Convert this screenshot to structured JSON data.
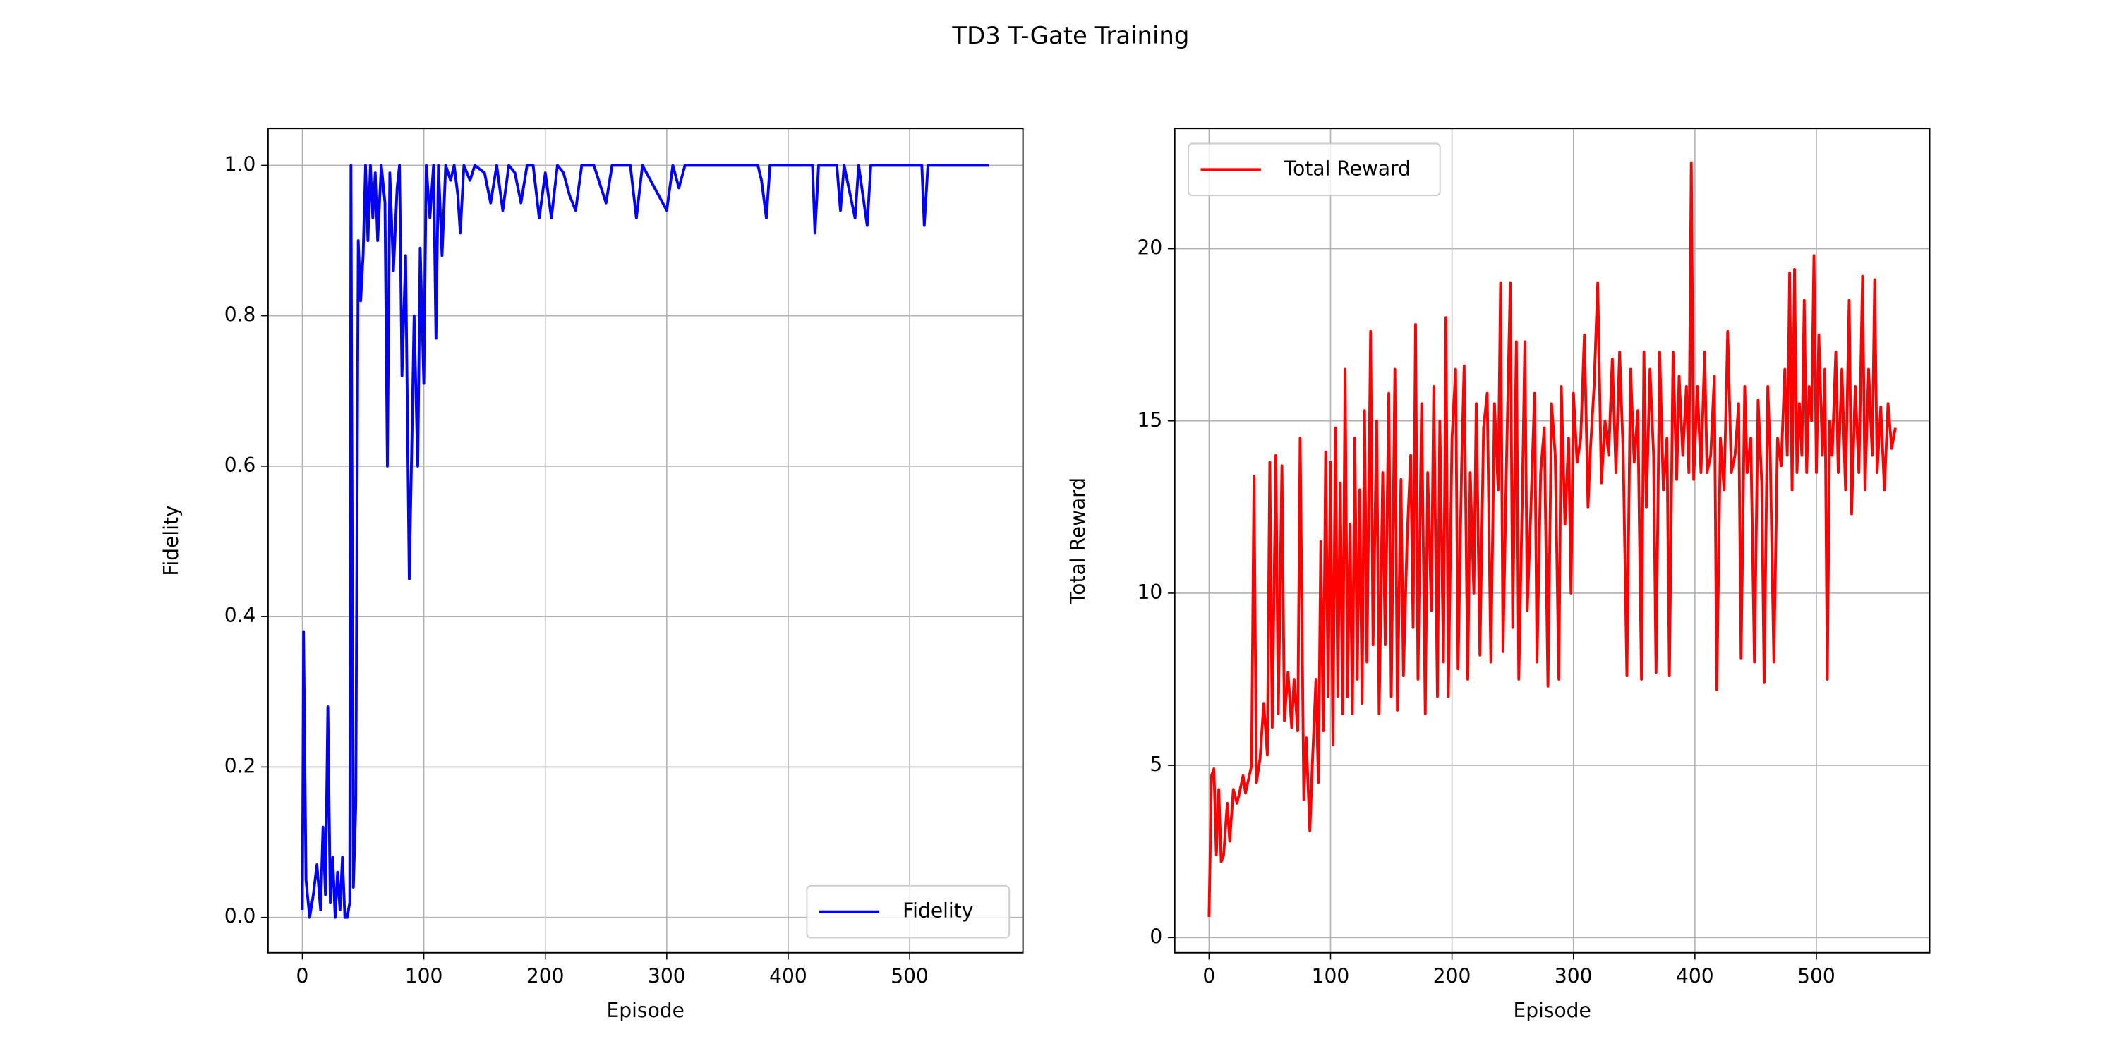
{
  "chart_data": [
    {
      "type": "line",
      "suptitle": "TD3 T-Gate Training",
      "xlabel": "Episode",
      "ylabel": "Fidelity",
      "grid": true,
      "legend": "lower right",
      "xlim": [
        -28.25,
        593.25
      ],
      "xticks": [
        0,
        100,
        200,
        300,
        400,
        500
      ],
      "ylim": [
        -0.047,
        1.049
      ],
      "yticks": [
        {
          "value": 0,
          "label": "0.0"
        },
        0.2,
        0.4,
        0.6,
        0.8,
        {
          "value": 1,
          "label": "1.0"
        }
      ],
      "x": [
        0,
        1,
        3,
        6,
        9,
        12,
        15,
        17,
        19,
        21,
        23,
        25,
        27,
        29,
        31,
        33,
        35,
        37,
        39,
        40,
        42,
        44,
        46,
        48,
        50,
        52,
        54,
        56,
        58,
        60,
        62,
        65,
        68,
        70,
        72,
        75,
        78,
        80,
        82,
        85,
        88,
        90,
        92,
        95,
        97,
        100,
        102,
        105,
        108,
        110,
        112,
        115,
        118,
        122,
        125,
        128,
        130,
        133,
        138,
        142,
        150,
        155,
        160,
        165,
        170,
        175,
        180,
        185,
        190,
        195,
        200,
        205,
        210,
        215,
        220,
        225,
        230,
        240,
        250,
        255,
        270,
        275,
        280,
        300,
        305,
        310,
        315,
        375,
        378,
        382,
        385,
        420,
        422,
        425,
        440,
        443,
        446,
        455,
        458,
        465,
        468,
        510,
        512,
        515,
        565
      ],
      "series": [
        {
          "name": "Fidelity",
          "color": "#0000ff",
          "values": [
            0.01,
            0.38,
            0.05,
            0.0,
            0.03,
            0.07,
            0.01,
            0.12,
            0.03,
            0.28,
            0.02,
            0.08,
            0.0,
            0.06,
            0.01,
            0.08,
            0.0,
            0.0,
            0.02,
            1.0,
            0.04,
            0.15,
            0.9,
            0.82,
            0.88,
            1.0,
            0.9,
            1.0,
            0.93,
            0.99,
            0.9,
            1.0,
            0.95,
            0.6,
            0.99,
            0.86,
            0.97,
            1.0,
            0.72,
            0.88,
            0.45,
            0.62,
            0.8,
            0.6,
            0.89,
            0.71,
            1.0,
            0.93,
            1.0,
            0.77,
            1.0,
            0.88,
            1.0,
            0.98,
            1.0,
            0.96,
            0.91,
            1.0,
            0.98,
            1.0,
            0.99,
            0.95,
            1.0,
            0.94,
            1.0,
            0.99,
            0.95,
            1.0,
            1.0,
            0.93,
            0.99,
            0.93,
            1.0,
            0.99,
            0.96,
            0.94,
            1.0,
            1.0,
            0.95,
            1.0,
            1.0,
            0.93,
            1.0,
            0.94,
            1.0,
            0.97,
            1.0,
            1.0,
            0.98,
            0.93,
            1.0,
            1.0,
            0.91,
            1.0,
            1.0,
            0.94,
            1.0,
            0.93,
            1.0,
            0.92,
            1.0,
            1.0,
            0.92,
            1.0,
            1.0
          ]
        }
      ]
    },
    {
      "type": "line",
      "xlabel": "Episode",
      "ylabel": "Total Reward",
      "grid": true,
      "legend": "upper left",
      "xlim": [
        -28.25,
        593.25
      ],
      "xticks": [
        0,
        100,
        200,
        300,
        400,
        500
      ],
      "ylim": [
        -0.44,
        23.49
      ],
      "yticks": [
        0,
        5,
        10,
        15,
        20
      ],
      "x": [
        0,
        2,
        4,
        6,
        8,
        10,
        12,
        15,
        17,
        20,
        23,
        25,
        28,
        30,
        35,
        37,
        39,
        42,
        45,
        48,
        50,
        52,
        55,
        57,
        60,
        62,
        65,
        68,
        70,
        73,
        75,
        78,
        80,
        83,
        85,
        88,
        90,
        92,
        94,
        96,
        98,
        100,
        102,
        104,
        106,
        108,
        110,
        112,
        114,
        116,
        118,
        120,
        122,
        124,
        126,
        128,
        130,
        133,
        135,
        138,
        140,
        143,
        145,
        148,
        150,
        153,
        155,
        158,
        160,
        163,
        166,
        168,
        170,
        172,
        175,
        178,
        180,
        183,
        185,
        188,
        190,
        193,
        195,
        197,
        200,
        203,
        205,
        208,
        210,
        213,
        215,
        218,
        220,
        223,
        226,
        229,
        232,
        235,
        238,
        240,
        242,
        245,
        248,
        250,
        253,
        255,
        258,
        260,
        262,
        265,
        268,
        270,
        273,
        276,
        279,
        282,
        285,
        288,
        290,
        293,
        296,
        298,
        300,
        303,
        306,
        309,
        312,
        314,
        317,
        320,
        323,
        326,
        329,
        332,
        335,
        338,
        341,
        344,
        347,
        350,
        353,
        356,
        358,
        360,
        363,
        366,
        368,
        371,
        374,
        377,
        379,
        382,
        385,
        387,
        390,
        393,
        395,
        397,
        399,
        402,
        405,
        408,
        410,
        413,
        416,
        418,
        421,
        424,
        427,
        430,
        433,
        436,
        438,
        441,
        443,
        446,
        449,
        452,
        455,
        457,
        460,
        462,
        465,
        468,
        471,
        474,
        476,
        478,
        480,
        482,
        484,
        486,
        488,
        490,
        492,
        494,
        496,
        498,
        500,
        502,
        505,
        507,
        509,
        511,
        513,
        516,
        518,
        521,
        524,
        527,
        529,
        532,
        535,
        538,
        540,
        543,
        546,
        548,
        550,
        553,
        556,
        559,
        562,
        565
      ],
      "series": [
        {
          "name": "Total Reward",
          "color": "#ff0000",
          "values": [
            0.6,
            4.7,
            4.9,
            2.4,
            4.3,
            2.2,
            2.4,
            3.9,
            2.8,
            4.3,
            3.9,
            4.2,
            4.7,
            4.2,
            5.0,
            13.4,
            4.5,
            5.2,
            6.8,
            5.3,
            13.8,
            6.1,
            14.0,
            6.5,
            13.7,
            6.3,
            7.7,
            6.1,
            7.5,
            6.0,
            14.5,
            4.0,
            5.8,
            3.1,
            5.0,
            7.5,
            4.5,
            11.5,
            6.0,
            14.1,
            7.0,
            13.8,
            5.6,
            14.8,
            7.0,
            13.2,
            6.5,
            16.5,
            7.0,
            12.0,
            6.5,
            14.5,
            7.5,
            13.0,
            6.8,
            15.3,
            8.0,
            17.6,
            8.5,
            15.0,
            6.5,
            13.5,
            8.5,
            15.8,
            7.0,
            16.5,
            6.6,
            13.3,
            7.6,
            11.5,
            14.0,
            9.0,
            17.8,
            7.5,
            15.5,
            6.5,
            13.5,
            9.5,
            16.0,
            7.0,
            15.0,
            8.0,
            18.0,
            7.0,
            14.5,
            16.5,
            7.8,
            13.8,
            16.6,
            7.5,
            13.5,
            10.0,
            15.5,
            8.2,
            14.8,
            15.8,
            8.0,
            15.5,
            13.0,
            19.0,
            8.3,
            14.0,
            19.0,
            9.0,
            17.3,
            7.5,
            13.0,
            17.3,
            9.5,
            12.5,
            15.8,
            8.0,
            13.5,
            14.8,
            7.3,
            15.5,
            14.0,
            7.5,
            16.0,
            12.0,
            14.5,
            10.0,
            15.8,
            13.8,
            14.5,
            17.5,
            12.5,
            14.2,
            16.0,
            19.0,
            13.2,
            15.0,
            14.0,
            16.8,
            13.5,
            17.0,
            14.0,
            7.6,
            16.5,
            13.8,
            15.3,
            7.5,
            17.0,
            12.5,
            16.5,
            14.0,
            7.7,
            17.0,
            13.0,
            14.5,
            7.6,
            17.0,
            13.3,
            16.3,
            14.0,
            16.0,
            13.5,
            22.5,
            13.3,
            16.0,
            13.5,
            17.0,
            13.5,
            14.0,
            16.3,
            7.2,
            14.5,
            13.0,
            17.6,
            13.5,
            14.0,
            15.5,
            8.1,
            16.0,
            13.5,
            14.5,
            8.0,
            15.6,
            13.2,
            7.4,
            16.0,
            14.0,
            8.0,
            14.5,
            13.7,
            16.5,
            14.0,
            19.3,
            13.0,
            19.4,
            13.5,
            15.5,
            14.0,
            18.5,
            13.5,
            16.0,
            15.0,
            19.8,
            13.5,
            17.5,
            14.0,
            16.5,
            7.5,
            15.0,
            14.0,
            17.0,
            13.5,
            16.5,
            13.0,
            18.5,
            12.3,
            16.0,
            13.5,
            19.2,
            13.0,
            16.5,
            14.0,
            19.1,
            13.5,
            15.4,
            13.0,
            15.5,
            14.2,
            14.8
          ]
        }
      ]
    }
  ]
}
